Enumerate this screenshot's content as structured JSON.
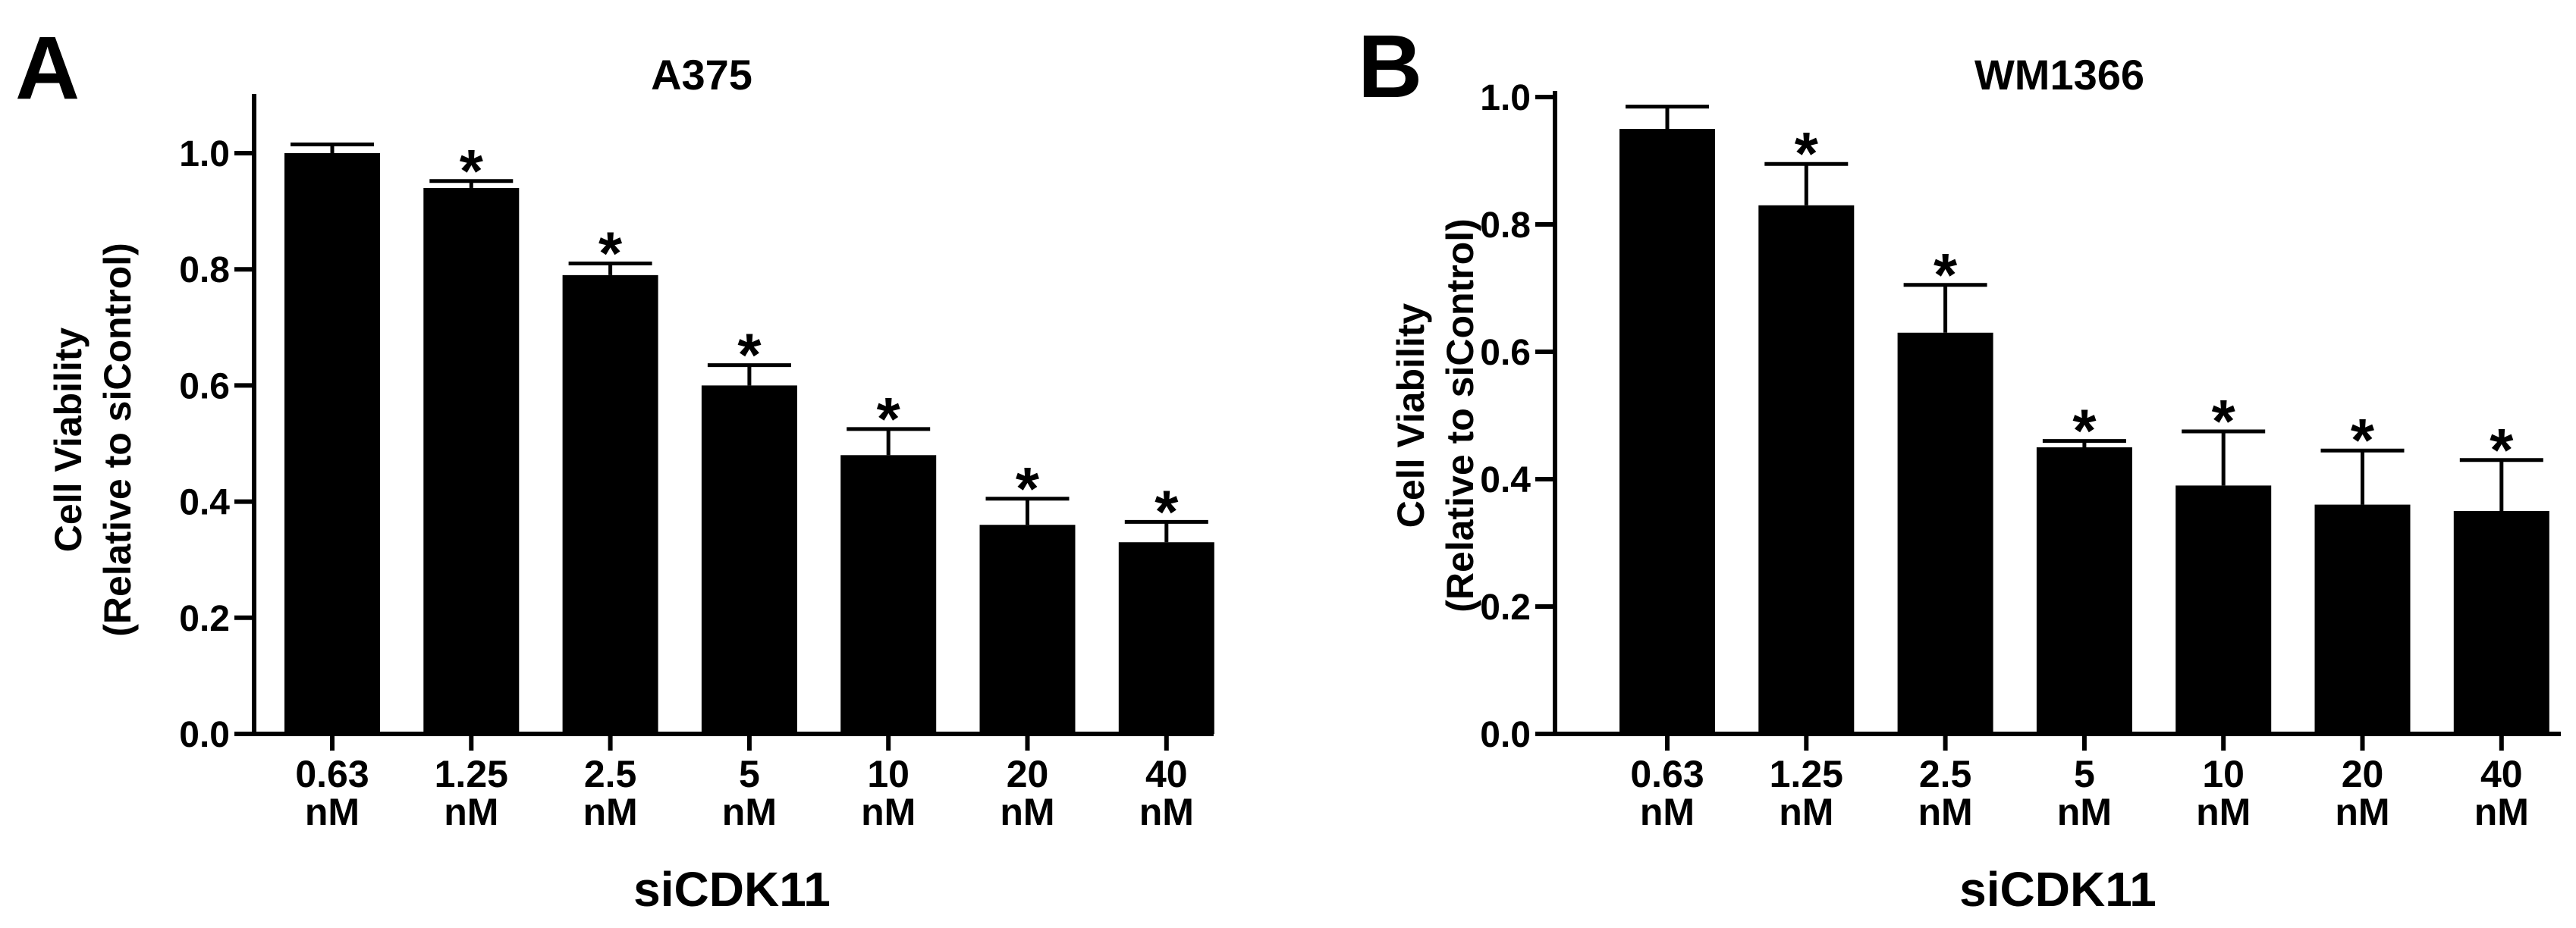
{
  "chart_data": [
    {
      "type": "bar",
      "panel": "A",
      "title": "A375",
      "xlabel": "siCDK11",
      "ylabel": [
        "Cell Viability",
        "(Relative to siControl)"
      ],
      "ylim": [
        0,
        1.1
      ],
      "yticks": [
        "0.0",
        "0.2",
        "0.4",
        "0.6",
        "0.8",
        "1.0"
      ],
      "categories": [
        [
          "0.63",
          "nM"
        ],
        [
          "1.25",
          "nM"
        ],
        [
          "2.5",
          "nM"
        ],
        [
          "5",
          "nM"
        ],
        [
          "10",
          "nM"
        ],
        [
          "20",
          "nM"
        ],
        [
          "40",
          "nM"
        ]
      ],
      "values": [
        1.0,
        0.94,
        0.79,
        0.6,
        0.48,
        0.36,
        0.33
      ],
      "errors": [
        0.015,
        0.012,
        0.02,
        0.035,
        0.045,
        0.045,
        0.035
      ],
      "significance": [
        "",
        "*",
        "*",
        "*",
        "*",
        "*",
        "*"
      ],
      "bar_color": "#000000",
      "grid": false
    },
    {
      "type": "bar",
      "panel": "B",
      "title": "WM1366",
      "xlabel": "siCDK11",
      "ylabel": [
        "Cell Viability",
        "(Relative to siControl)"
      ],
      "ylim": [
        0,
        1.0
      ],
      "yticks": [
        "0.0",
        "0.2",
        "0.4",
        "0.6",
        "0.8",
        "1.0"
      ],
      "categories": [
        [
          "0.63",
          "nM"
        ],
        [
          "1.25",
          "nM"
        ],
        [
          "2.5",
          "nM"
        ],
        [
          "5",
          "nM"
        ],
        [
          "10",
          "nM"
        ],
        [
          "20",
          "nM"
        ],
        [
          "40",
          "nM"
        ]
      ],
      "values": [
        0.95,
        0.83,
        0.63,
        0.45,
        0.39,
        0.36,
        0.35
      ],
      "errors": [
        0.035,
        0.065,
        0.075,
        0.01,
        0.085,
        0.085,
        0.08
      ],
      "significance": [
        "",
        "*",
        "*",
        "*",
        "*",
        "*",
        "*"
      ],
      "bar_color": "#000000",
      "grid": false
    }
  ]
}
